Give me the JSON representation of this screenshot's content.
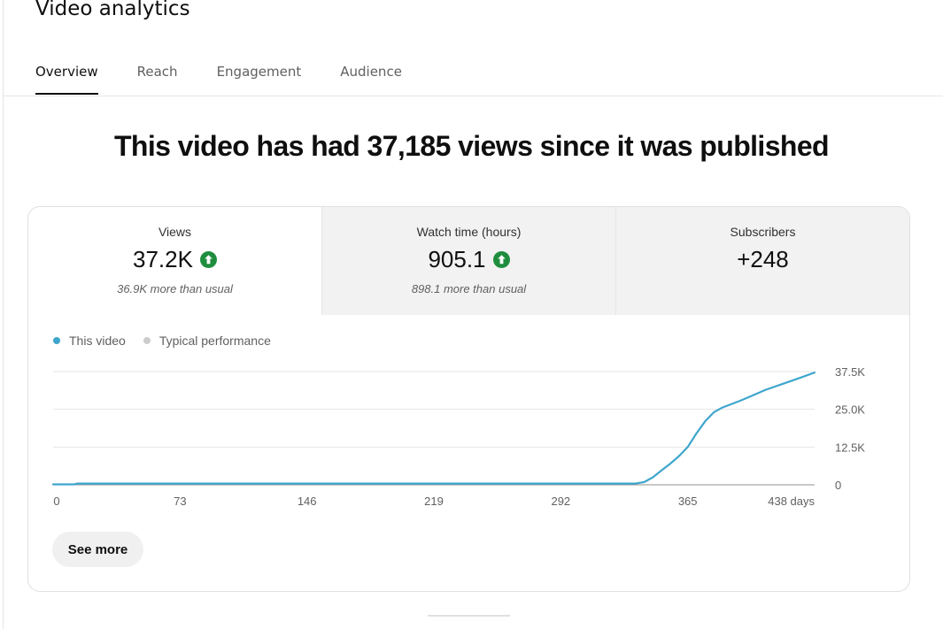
{
  "page": {
    "title": "Video analytics",
    "headline": "This video has had 37,185 views since it was published"
  },
  "tabs": [
    {
      "label": "Overview",
      "active": true
    },
    {
      "label": "Reach",
      "active": false
    },
    {
      "label": "Engagement",
      "active": false
    },
    {
      "label": "Audience",
      "active": false
    }
  ],
  "metrics": [
    {
      "label": "Views",
      "value": "37.2K",
      "note": "36.9K more than usual",
      "trend": "up"
    },
    {
      "label": "Watch time (hours)",
      "value": "905.1",
      "note": "898.1 more than usual",
      "trend": "up"
    },
    {
      "label": "Subscribers",
      "value": "+248",
      "note": "",
      "trend": "none"
    }
  ],
  "legend": [
    {
      "label": "This video",
      "color": "#3ea6cc"
    },
    {
      "label": "Typical performance",
      "color": "#cccccc"
    }
  ],
  "colors": {
    "trend_up": "#1e8e3e",
    "series": "#3ea6cc"
  },
  "see_more_label": "See more",
  "chart_data": {
    "type": "line",
    "x_tick_labels": [
      "0",
      "73",
      "146",
      "219",
      "292",
      "365",
      "438 days"
    ],
    "x_ticks": [
      0,
      73,
      146,
      219,
      292,
      365,
      438
    ],
    "y_tick_labels": [
      "0",
      "12.5K",
      "25.0K",
      "37.5K"
    ],
    "y_ticks": [
      0,
      12500,
      25000,
      37500
    ],
    "xlim": [
      0,
      438
    ],
    "ylim": [
      0,
      37500
    ],
    "grid": true,
    "series": [
      {
        "name": "This video",
        "x": [
          0,
          12,
          14,
          100,
          200,
          300,
          335,
          340,
          345,
          350,
          355,
          360,
          365,
          370,
          375,
          380,
          385,
          390,
          395,
          400,
          410,
          420,
          430,
          438
        ],
        "y": [
          150,
          150,
          400,
          400,
          400,
          400,
          400,
          900,
          2500,
          4800,
          7000,
          9500,
          12500,
          17000,
          21000,
          24000,
          25600,
          26700,
          27800,
          29000,
          31500,
          33500,
          35500,
          37185
        ]
      }
    ]
  }
}
